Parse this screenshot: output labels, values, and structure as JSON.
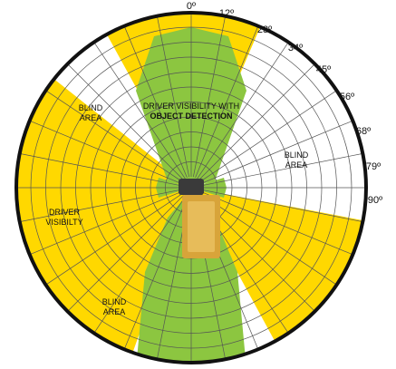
{
  "degree_marks": [
    "0º",
    "12º",
    "23º",
    "34º",
    "45º",
    "56º",
    "68º",
    "79º",
    "90º"
  ],
  "labels": {
    "object_detection_line1": "DRIVER VISIBILITY WITH",
    "object_detection_line2": "OBJECT DETECTION",
    "blind_area": "BLIND",
    "blind_area_2": "AREA",
    "driver_visibility_line1": "DRIVER",
    "driver_visibility_line2": "VISIBILTY"
  },
  "colors": {
    "driver_visibility": "#FFD800",
    "object_detection": "#8CC640",
    "grid_lines": "#555555",
    "outer_ring": "#111111",
    "truck": "#D8A43A",
    "cab": "#3A3A3A"
  }
}
